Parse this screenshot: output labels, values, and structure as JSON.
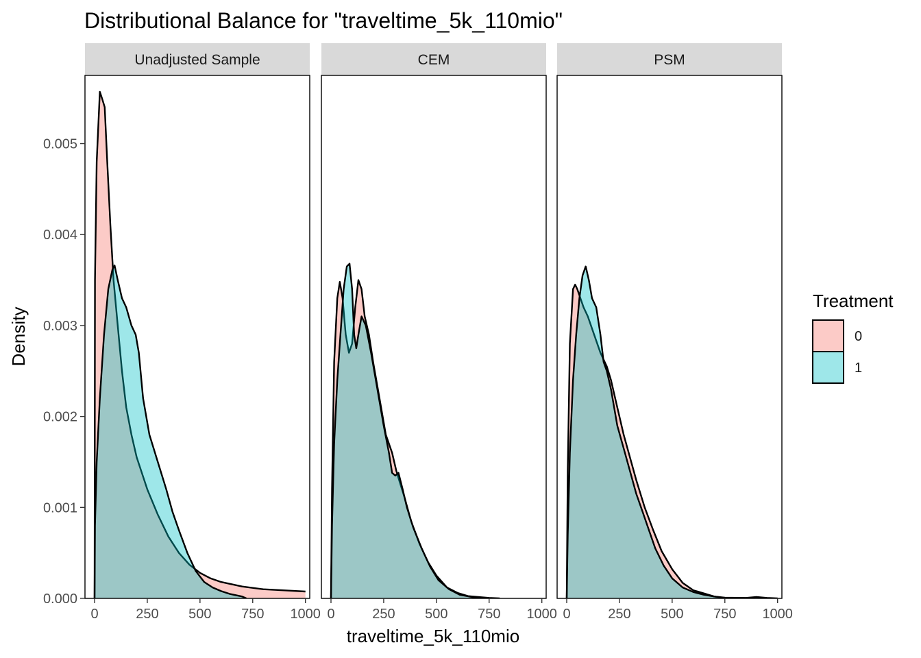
{
  "chart_data": {
    "type": "area",
    "subtype": "density",
    "title": "Distributional Balance for \"traveltime_5k_110mio\"",
    "xlabel": "traveltime_5k_110mio",
    "ylabel": "Density",
    "xlim": [
      0,
      1000
    ],
    "ylim": [
      0,
      0.00575
    ],
    "x_ticks": [
      0,
      250,
      500,
      750,
      1000
    ],
    "x_tick_labels": [
      "0",
      "250",
      "500",
      "750",
      "1000"
    ],
    "y_ticks": [
      0,
      0.001,
      0.002,
      0.003,
      0.004,
      0.005
    ],
    "y_tick_labels": [
      "0.000",
      "0.001",
      "0.002",
      "0.003",
      "0.004",
      "0.005"
    ],
    "grid": false,
    "legend": {
      "title": "Treatment",
      "position": "right",
      "entries": [
        {
          "label": "0",
          "color": "#F8766D"
        },
        {
          "label": "1",
          "color": "#00BFC4"
        }
      ]
    },
    "panels": [
      {
        "label": "Unadjusted Sample",
        "series": [
          {
            "name": "0",
            "color": "#F8766D",
            "points": [
              [
                0,
                0
              ],
              [
                2,
                0.0035
              ],
              [
                10,
                0.0048
              ],
              [
                25,
                0.00557
              ],
              [
                35,
                0.0055
              ],
              [
                48,
                0.0054
              ],
              [
                60,
                0.0048
              ],
              [
                75,
                0.0041
              ],
              [
                90,
                0.0035
              ],
              [
                110,
                0.003
              ],
              [
                130,
                0.0025
              ],
              [
                150,
                0.0021
              ],
              [
                175,
                0.0018
              ],
              [
                200,
                0.00155
              ],
              [
                250,
                0.0012
              ],
              [
                300,
                0.00092
              ],
              [
                350,
                0.00068
              ],
              [
                400,
                0.0005
              ],
              [
                450,
                0.00037
              ],
              [
                500,
                0.00028
              ],
              [
                550,
                0.00022
              ],
              [
                600,
                0.00018
              ],
              [
                700,
                0.00013
              ],
              [
                800,
                0.0001
              ],
              [
                900,
                8.8e-05
              ],
              [
                1000,
                7.5e-05
              ]
            ]
          },
          {
            "name": "1",
            "color": "#00BFC4",
            "points": [
              [
                0,
                0
              ],
              [
                2,
                0.0008
              ],
              [
                10,
                0.0015
              ],
              [
                25,
                0.0022
              ],
              [
                45,
                0.0029
              ],
              [
                65,
                0.0034
              ],
              [
                85,
                0.00362
              ],
              [
                95,
                0.00366
              ],
              [
                110,
                0.0035
              ],
              [
                130,
                0.0033
              ],
              [
                150,
                0.0032
              ],
              [
                175,
                0.003
              ],
              [
                195,
                0.0029
              ],
              [
                210,
                0.0027
              ],
              [
                230,
                0.0022
              ],
              [
                260,
                0.0018
              ],
              [
                300,
                0.0015
              ],
              [
                340,
                0.0012
              ],
              [
                370,
                0.00095
              ],
              [
                400,
                0.00075
              ],
              [
                440,
                0.0005
              ],
              [
                480,
                0.0003
              ],
              [
                520,
                0.00018
              ],
              [
                560,
                0.00012
              ],
              [
                600,
                8e-05
              ],
              [
                640,
                5e-05
              ],
              [
                700,
                2e-05
              ],
              [
                720,
                0
              ]
            ]
          }
        ]
      },
      {
        "label": "CEM",
        "series": [
          {
            "name": "0",
            "color": "#F8766D",
            "points": [
              [
                0,
                0
              ],
              [
                5,
                0.0012
              ],
              [
                15,
                0.0026
              ],
              [
                30,
                0.0033
              ],
              [
                42,
                0.00348
              ],
              [
                55,
                0.0033
              ],
              [
                70,
                0.0029
              ],
              [
                85,
                0.0027
              ],
              [
                100,
                0.0028
              ],
              [
                115,
                0.0032
              ],
              [
                130,
                0.0035
              ],
              [
                145,
                0.0034
              ],
              [
                160,
                0.0031
              ],
              [
                180,
                0.0029
              ],
              [
                200,
                0.0026
              ],
              [
                230,
                0.0022
              ],
              [
                260,
                0.0018
              ],
              [
                290,
                0.0016
              ],
              [
                310,
                0.0014
              ],
              [
                330,
                0.00125
              ],
              [
                350,
                0.0011
              ],
              [
                380,
                0.00085
              ],
              [
                420,
                0.0006
              ],
              [
                460,
                0.0004
              ],
              [
                500,
                0.00025
              ],
              [
                550,
                0.00012
              ],
              [
                600,
                6e-05
              ],
              [
                650,
                2.5e-05
              ],
              [
                750,
                5e-06
              ],
              [
                800,
                0
              ]
            ]
          },
          {
            "name": "1",
            "color": "#00BFC4",
            "points": [
              [
                0,
                0
              ],
              [
                5,
                0.0008
              ],
              [
                15,
                0.0017
              ],
              [
                30,
                0.0024
              ],
              [
                45,
                0.0029
              ],
              [
                60,
                0.0034
              ],
              [
                75,
                0.00365
              ],
              [
                88,
                0.00368
              ],
              [
                100,
                0.0034
              ],
              [
                110,
                0.0029
              ],
              [
                120,
                0.00275
              ],
              [
                130,
                0.0029
              ],
              [
                145,
                0.0031
              ],
              [
                165,
                0.003
              ],
              [
                190,
                0.0027
              ],
              [
                220,
                0.0023
              ],
              [
                250,
                0.0019
              ],
              [
                275,
                0.0016
              ],
              [
                290,
                0.00138
              ],
              [
                305,
                0.00135
              ],
              [
                320,
                0.00138
              ],
              [
                340,
                0.0012
              ],
              [
                360,
                0.001
              ],
              [
                390,
                0.00078
              ],
              [
                430,
                0.00055
              ],
              [
                470,
                0.00035
              ],
              [
                510,
                0.0002
              ],
              [
                560,
                0.0001
              ],
              [
                610,
                4e-05
              ],
              [
                680,
                1e-05
              ],
              [
                720,
                0
              ]
            ]
          }
        ]
      },
      {
        "label": "PSM",
        "series": [
          {
            "name": "0",
            "color": "#F8766D",
            "points": [
              [
                0,
                0
              ],
              [
                5,
                0.0014
              ],
              [
                15,
                0.0028
              ],
              [
                30,
                0.0034
              ],
              [
                40,
                0.00345
              ],
              [
                50,
                0.0034
              ],
              [
                65,
                0.0033
              ],
              [
                80,
                0.0032
              ],
              [
                100,
                0.0031
              ],
              [
                130,
                0.0029
              ],
              [
                160,
                0.0027
              ],
              [
                190,
                0.00255
              ],
              [
                210,
                0.0024
              ],
              [
                240,
                0.0021
              ],
              [
                270,
                0.0018
              ],
              [
                300,
                0.00155
              ],
              [
                330,
                0.0013
              ],
              [
                370,
                0.001
              ],
              [
                410,
                0.00075
              ],
              [
                450,
                0.00052
              ],
              [
                500,
                0.00032
              ],
              [
                550,
                0.00017
              ],
              [
                600,
                9e-05
              ],
              [
                650,
                5.5e-05
              ],
              [
                700,
                2e-05
              ],
              [
                750,
                5e-06
              ],
              [
                800,
                0
              ]
            ]
          },
          {
            "name": "1",
            "color": "#00BFC4",
            "points": [
              [
                0,
                0
              ],
              [
                5,
                0.0007
              ],
              [
                15,
                0.0016
              ],
              [
                30,
                0.0024
              ],
              [
                45,
                0.0029
              ],
              [
                60,
                0.0033
              ],
              [
                75,
                0.00355
              ],
              [
                90,
                0.00365
              ],
              [
                105,
                0.0035
              ],
              [
                120,
                0.0033
              ],
              [
                140,
                0.0032
              ],
              [
                160,
                0.0029
              ],
              [
                175,
                0.0026
              ],
              [
                190,
                0.0025
              ],
              [
                210,
                0.0023
              ],
              [
                240,
                0.0019
              ],
              [
                270,
                0.00165
              ],
              [
                300,
                0.0014
              ],
              [
                330,
                0.00115
              ],
              [
                360,
                0.00095
              ],
              [
                390,
                0.00075
              ],
              [
                420,
                0.00055
              ],
              [
                460,
                0.00036
              ],
              [
                500,
                0.00022
              ],
              [
                550,
                0.00012
              ],
              [
                600,
                7e-05
              ],
              [
                650,
                4e-05
              ],
              [
                700,
                2e-05
              ],
              [
                750,
                8e-06
              ],
              [
                850,
                5e-06
              ],
              [
                900,
                1.5e-05
              ],
              [
                950,
                5e-06
              ],
              [
                1000,
                0
              ]
            ]
          }
        ]
      }
    ]
  },
  "colors": {
    "treatment_0": "#F8766D",
    "treatment_1": "#00BFC4",
    "strip_background": "#D9D9D9"
  }
}
